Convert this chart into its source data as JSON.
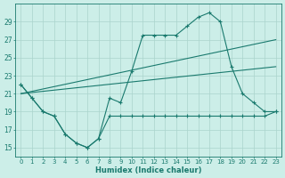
{
  "xlabel": "Humidex (Indice chaleur)",
  "x": [
    0,
    1,
    2,
    3,
    4,
    5,
    6,
    7,
    8,
    9,
    10,
    11,
    12,
    13,
    14,
    15,
    16,
    17,
    18,
    19,
    20,
    21,
    22,
    23
  ],
  "main_curve": [
    22.0,
    20.5,
    19.0,
    18.5,
    16.5,
    15.5,
    15.0,
    16.0,
    20.5,
    20.0,
    23.5,
    27.5,
    27.5,
    27.5,
    27.5,
    28.5,
    29.5,
    30.0,
    29.0,
    24.0,
    21.0,
    20.0,
    19.0,
    19.0
  ],
  "lower_curve_x": [
    0,
    1,
    2,
    3,
    4,
    5,
    6,
    7,
    8,
    9,
    10,
    11,
    12,
    13,
    14,
    15,
    16,
    17,
    18,
    19,
    20,
    21,
    22,
    23
  ],
  "lower_curve": [
    22.0,
    20.5,
    19.0,
    18.5,
    16.5,
    15.5,
    15.0,
    16.0,
    18.5,
    18.5,
    18.5,
    18.5,
    18.5,
    18.5,
    18.5,
    18.5,
    18.5,
    18.5,
    18.5,
    18.5,
    18.5,
    18.5,
    18.5,
    19.0
  ],
  "trend1_x": [
    0,
    23
  ],
  "trend1_y": [
    21.0,
    27.0
  ],
  "trend2_x": [
    0,
    23
  ],
  "trend2_y": [
    21.0,
    24.0
  ],
  "bg_color": "#cceee8",
  "line_color": "#1a7a6e",
  "grid_color": "#aad4cc",
  "ylim": [
    14.0,
    31.0
  ],
  "yticks": [
    15,
    17,
    19,
    21,
    23,
    25,
    27,
    29
  ],
  "xticks": [
    0,
    1,
    2,
    3,
    4,
    5,
    6,
    7,
    8,
    9,
    10,
    11,
    12,
    13,
    14,
    15,
    16,
    17,
    18,
    19,
    20,
    21,
    22,
    23
  ],
  "xlim": [
    -0.5,
    23.5
  ]
}
